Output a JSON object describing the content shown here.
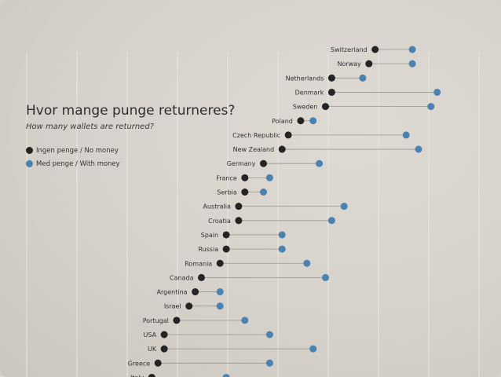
{
  "title": "Hvor mange punge returneres?",
  "subtitle": "How many wallets are returned?",
  "legend": {
    "no_money": "Ingen penge / No money",
    "with_money": "Med penge / With money"
  },
  "colors": {
    "no_money": "#242424",
    "with_money": "#4a82b0",
    "connector": "#9a9690",
    "gridline": "#e9e6e1"
  },
  "chart_data": {
    "type": "dumbbell",
    "series": [
      {
        "name": "Ingen penge / No money",
        "key": "no_money"
      },
      {
        "name": "Med penge / With money",
        "key": "with_money"
      }
    ],
    "categories": [
      "Switzerland",
      "Norway",
      "Netherlands",
      "Denmark",
      "Sweden",
      "Poland",
      "Czech Republic",
      "New Zealand",
      "Germany",
      "France",
      "Serbia",
      "Australia",
      "Croatia",
      "Spain",
      "Russia",
      "Romania",
      "Canada",
      "Argentina",
      "Israel",
      "Portugal",
      "USA",
      "UK",
      "Greece",
      "Italy"
    ],
    "no_money": [
      73,
      72,
      66,
      66,
      65,
      61,
      59,
      58,
      55,
      52,
      52,
      51,
      51,
      49,
      49,
      48,
      45,
      44,
      43,
      41,
      39,
      39,
      38,
      37
    ],
    "with_money": [
      79,
      79,
      71,
      83,
      82,
      63,
      78,
      80,
      64,
      56,
      55,
      68,
      66,
      58,
      58,
      62,
      65,
      48,
      48,
      52,
      56,
      63,
      56,
      49
    ],
    "xlim": [
      0,
      100
    ],
    "grid": true,
    "legend_position": "left"
  }
}
